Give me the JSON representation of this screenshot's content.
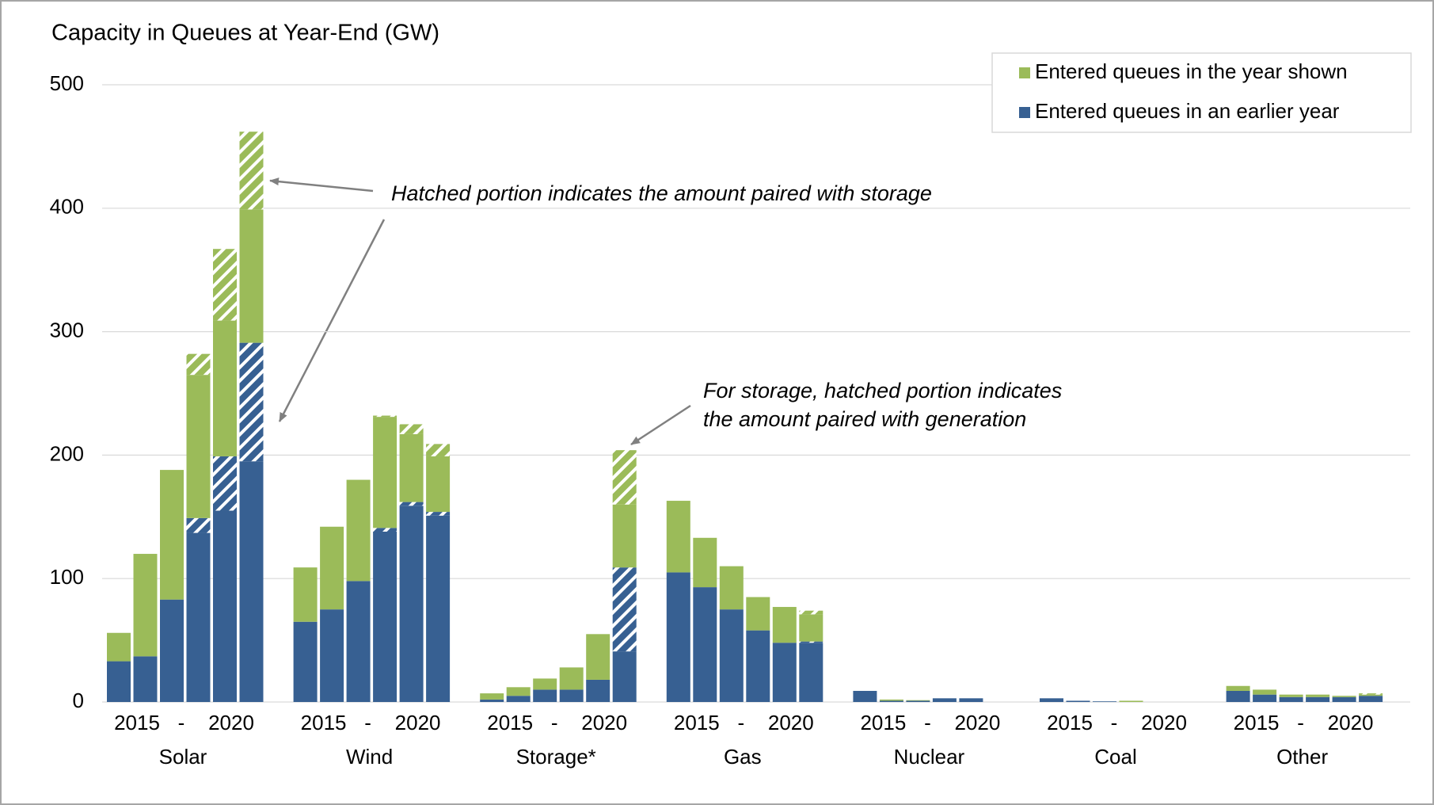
{
  "chart_data": {
    "type": "grouped_stacked_bar",
    "title": "Capacity in Queues at Year-End (GW)",
    "categories": [
      "Solar",
      "Wind",
      "Storage*",
      "Gas",
      "Nuclear",
      "Coal",
      "Other"
    ],
    "period_labels": [
      "2015",
      "-",
      "2020"
    ],
    "series": [
      {
        "name": "Entered queues in an earlier year",
        "color": "#376092",
        "values": [
          [
            33,
            37,
            83,
            137,
            155,
            195
          ],
          [
            65,
            75,
            98,
            138,
            159,
            151
          ],
          [
            2,
            5,
            10,
            10,
            18,
            41
          ],
          [
            105,
            93,
            75,
            58,
            48,
            48
          ],
          [
            9,
            1,
            1,
            3,
            3,
            0
          ],
          [
            3,
            1,
            0.5,
            0,
            0,
            0
          ],
          [
            9,
            6,
            4,
            4,
            4,
            5
          ]
        ]
      },
      {
        "color": "#376092",
        "hatch": true,
        "values": [
          [
            0,
            0,
            0,
            12,
            44,
            96
          ],
          [
            0,
            0,
            0,
            3,
            3,
            3
          ],
          [
            0,
            0,
            0,
            0,
            0,
            68
          ],
          [
            0,
            0,
            0,
            0,
            0,
            1
          ],
          [
            0,
            0,
            0,
            0,
            0,
            0
          ],
          [
            0,
            0,
            0,
            0,
            0,
            0
          ],
          [
            0,
            0,
            0,
            0,
            0,
            0
          ]
        ]
      },
      {
        "name": "Entered queues in the year shown",
        "color": "#9bbb59",
        "values": [
          [
            23,
            83,
            105,
            116,
            110,
            108
          ],
          [
            44,
            67,
            82,
            90,
            55,
            45
          ],
          [
            5,
            7,
            9,
            18,
            37,
            51
          ],
          [
            58,
            40,
            35,
            27,
            29,
            22
          ],
          [
            0,
            1,
            0.5,
            0,
            0,
            0
          ],
          [
            0,
            0,
            0,
            1,
            0,
            0
          ],
          [
            4,
            4,
            2,
            2,
            1,
            1
          ]
        ]
      },
      {
        "color": "#9bbb59",
        "hatch": true,
        "values": [
          [
            0,
            0,
            0,
            17,
            58,
            63
          ],
          [
            0,
            0,
            0,
            1,
            8,
            10
          ],
          [
            0,
            0,
            0,
            0,
            0,
            44
          ],
          [
            0,
            0,
            0,
            0,
            0,
            3
          ],
          [
            0,
            0,
            0,
            0,
            0,
            0
          ],
          [
            0,
            0,
            0,
            0,
            0,
            0
          ],
          [
            0,
            0,
            0,
            0,
            0,
            1
          ]
        ]
      }
    ],
    "ylim": [
      0,
      500
    ],
    "yticks": [
      0,
      100,
      200,
      300,
      400,
      500
    ],
    "grid": true,
    "legend": "top-right",
    "annotations": [
      {
        "lines": [
          "Hatched portion indicates the amount paired with storage"
        ]
      },
      {
        "lines": [
          "For storage, hatched portion indicates",
          "the amount paired with generation"
        ]
      }
    ]
  }
}
